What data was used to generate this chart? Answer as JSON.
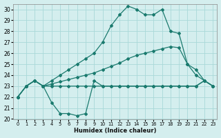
{
  "xlabel": "Humidex (Indice chaleur)",
  "background_color": "#d4eeee",
  "grid_color": "#a8d8d8",
  "line_color": "#1a7a6e",
  "xlim": [
    -0.5,
    23.5
  ],
  "ylim": [
    20,
    30.5
  ],
  "yticks": [
    20,
    21,
    22,
    23,
    24,
    25,
    26,
    27,
    28,
    29,
    30
  ],
  "xticks": [
    0,
    1,
    2,
    3,
    4,
    5,
    6,
    7,
    8,
    9,
    10,
    11,
    12,
    13,
    14,
    15,
    16,
    17,
    18,
    19,
    20,
    21,
    22,
    23
  ],
  "series": [
    {
      "x": [
        0,
        1,
        2,
        3,
        4,
        5,
        6,
        7,
        8,
        9,
        10,
        11,
        12,
        13,
        14,
        15,
        16,
        17,
        18,
        19,
        20,
        21,
        22,
        23
      ],
      "y": [
        22,
        23,
        23.5,
        23,
        21.5,
        20.5,
        20.5,
        20.3,
        20.5,
        23.5,
        23,
        23,
        23,
        23,
        23,
        23,
        23,
        23,
        23,
        23,
        23,
        23,
        23.5,
        23
      ]
    },
    {
      "x": [
        0,
        1,
        2,
        3,
        4,
        5,
        6,
        7,
        8,
        9,
        10,
        11,
        12,
        13,
        14,
        15,
        16,
        17,
        18,
        19,
        20,
        21,
        22,
        23
      ],
      "y": [
        22,
        23,
        23.5,
        23,
        23,
        23,
        23,
        23,
        23,
        23,
        23,
        23,
        23,
        23,
        23,
        23,
        23,
        23,
        23,
        23,
        23,
        23,
        23.5,
        23
      ]
    },
    {
      "x": [
        0,
        1,
        2,
        3,
        4,
        5,
        6,
        7,
        8,
        9,
        10,
        11,
        12,
        13,
        14,
        15,
        16,
        17,
        18,
        19,
        20,
        21,
        22,
        23
      ],
      "y": [
        22,
        23,
        23.5,
        23,
        23.2,
        23.4,
        23.6,
        23.8,
        24.0,
        24.2,
        24.5,
        24.8,
        25.1,
        25.5,
        25.8,
        26.0,
        26.2,
        26.4,
        26.6,
        26.5,
        25.0,
        24.5,
        23.5,
        23
      ]
    },
    {
      "x": [
        0,
        1,
        2,
        3,
        4,
        5,
        6,
        7,
        8,
        9,
        10,
        11,
        12,
        13,
        14,
        15,
        16,
        17,
        18,
        19,
        20,
        21,
        22,
        23
      ],
      "y": [
        22,
        23,
        23.5,
        23,
        23.5,
        24.0,
        24.5,
        25.0,
        25.5,
        26.0,
        27.0,
        28.5,
        29.5,
        30.3,
        30.0,
        29.5,
        29.5,
        30.0,
        28.0,
        27.8,
        25.0,
        24.0,
        23.5,
        23
      ]
    }
  ]
}
